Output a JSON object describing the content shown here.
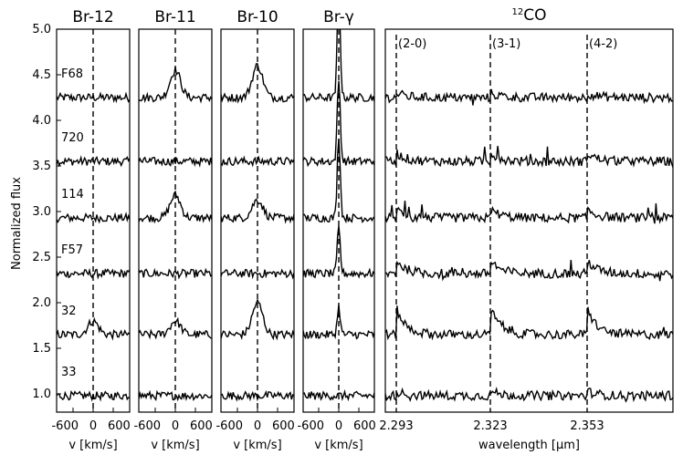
{
  "chart_data": {
    "type": "line",
    "ylabel": "Normalized flux",
    "ylim": [
      0.8,
      5.0
    ],
    "yticks": [
      "1.0",
      "1.5",
      "2.0",
      "2.5",
      "3.0",
      "3.5",
      "4.0",
      "4.5",
      "5.0"
    ],
    "spectra": [
      {
        "name": "F68",
        "offset": 4.25
      },
      {
        "name": "720",
        "offset": 3.55
      },
      {
        "name": "114",
        "offset": 2.93
      },
      {
        "name": "F57",
        "offset": 2.32
      },
      {
        "name": "32",
        "offset": 1.65
      },
      {
        "name": "33",
        "offset": 0.98
      }
    ],
    "panels": [
      {
        "title": "Br-12",
        "xlabel": "v [km/s]",
        "xticks": [
          "-600",
          "0",
          "600"
        ],
        "emission": [
          0.0,
          0.0,
          0.0,
          0.0,
          0.15,
          0.0
        ]
      },
      {
        "title": "Br-11",
        "xlabel": "v [km/s]",
        "xticks": [
          "-600",
          "0",
          "600"
        ],
        "emission": [
          0.3,
          0.0,
          0.25,
          0.0,
          0.15,
          0.0
        ]
      },
      {
        "title": "Br-10",
        "xlabel": "v [km/s]",
        "xticks": [
          "-600",
          "0",
          "600"
        ],
        "emission": [
          0.35,
          0.0,
          0.2,
          0.0,
          0.35,
          0.0
        ]
      },
      {
        "title": "Br-γ",
        "xlabel": "v [km/s]",
        "xticks": [
          "-600",
          "0",
          "600"
        ],
        "emission": [
          1.2,
          0.9,
          0.9,
          0.5,
          0.3,
          0.0
        ]
      },
      {
        "title": "12CO",
        "xlabel": "wavelength [μm]",
        "xticks": [
          "2.293",
          "2.323",
          "2.353"
        ],
        "bandheads": [
          "(2-0)",
          "(3-1)",
          "(4-2)"
        ],
        "co_strength": [
          0.05,
          0.1,
          0.1,
          0.15,
          0.3,
          0.05
        ]
      }
    ]
  }
}
